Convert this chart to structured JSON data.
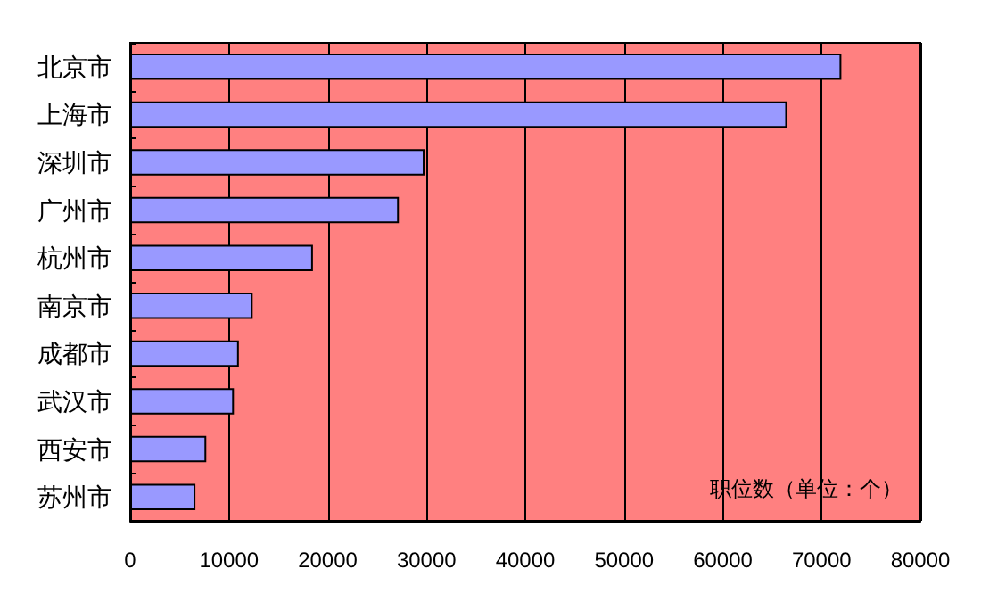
{
  "chart_data": {
    "type": "bar",
    "orientation": "horizontal",
    "xlabel": "职位数（单位：个）",
    "categories": [
      "北京市",
      "上海市",
      "深圳市",
      "广州市",
      "杭州市",
      "南京市",
      "成都市",
      "武汉市",
      "西安市",
      "苏州市"
    ],
    "values": [
      72000,
      66500,
      29800,
      27200,
      18500,
      12400,
      11000,
      10500,
      7700,
      6600
    ],
    "color": "#9999ff",
    "xlim": [
      0,
      80000
    ],
    "xticks": [
      0,
      10000,
      20000,
      30000,
      40000,
      50000,
      60000,
      70000,
      80000
    ],
    "grid": "x"
  }
}
